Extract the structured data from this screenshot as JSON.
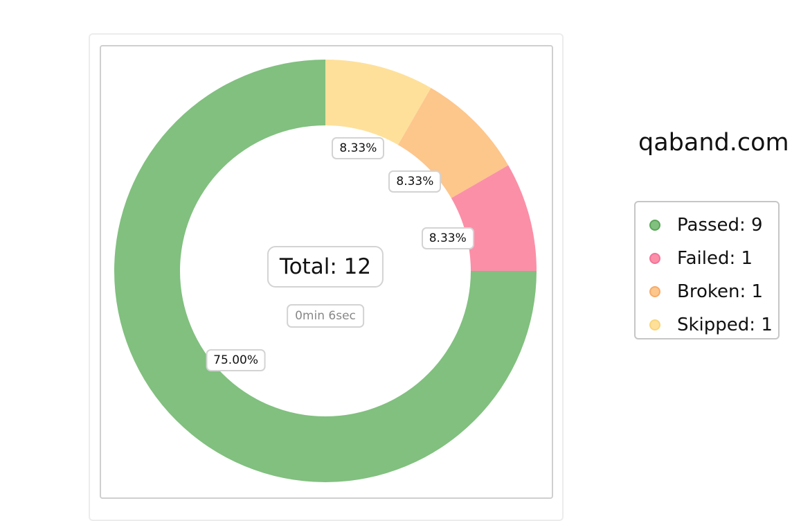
{
  "site_title": "qaband.com",
  "chart_data": {
    "type": "pie",
    "subtype": "donut",
    "series": [
      {
        "name": "Passed",
        "value": 9,
        "percent_label": "75.00%",
        "color": "#81c07f",
        "border": "#5aa558"
      },
      {
        "name": "Failed",
        "value": 1,
        "percent_label": "8.33%",
        "color": "#fb8fa8",
        "border": "#f3739a"
      },
      {
        "name": "Broken",
        "value": 1,
        "percent_label": "8.33%",
        "color": "#fdc68b",
        "border": "#f6ab6a"
      },
      {
        "name": "Skipped",
        "value": 1,
        "percent_label": "8.33%",
        "color": "#fee09a",
        "border": "#f8d57a"
      }
    ],
    "draw_order_clockwise_from_top": [
      "Skipped",
      "Broken",
      "Failed",
      "Passed"
    ],
    "center_total": "Total: 12",
    "center_duration": "0min 6sec",
    "legend": [
      "Passed: 9",
      "Failed: 1",
      "Broken: 1",
      "Skipped: 1"
    ],
    "legend_placement": "right"
  }
}
